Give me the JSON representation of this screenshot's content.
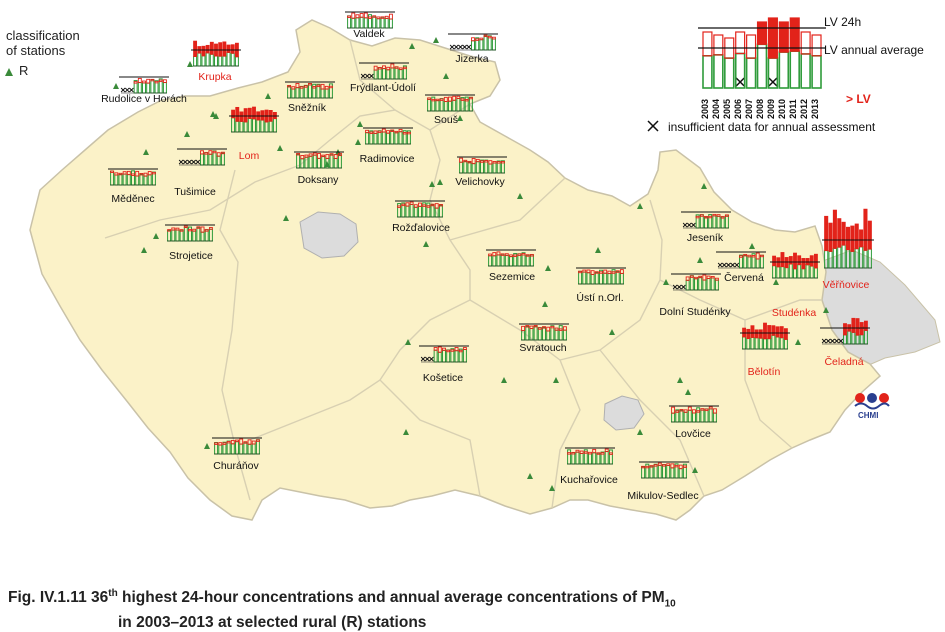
{
  "legend": {
    "title_line1": "classification",
    "title_line2": "of stations",
    "rural_marker": "R",
    "lv_24h": "LV 24h",
    "lv_annual": "LV  annual average",
    "gt_lv": "> LV",
    "insufficient": "insufficient data for annual assessment",
    "years": [
      "2003",
      "2004",
      "2005",
      "2006",
      "2007",
      "2008",
      "2009",
      "2010",
      "2011",
      "2012",
      "2013"
    ]
  },
  "colors": {
    "land": "#fbf2c8",
    "neighbor": "#dcdcdc",
    "border": "#c9c2a8",
    "bar_green": "#2e9b3a",
    "bar_red": "#e2231a",
    "marker": "#3a8a3a",
    "exceed_label": "#e2231a"
  },
  "stations": [
    {
      "name": "Rudolice v Horách",
      "exceed": false
    },
    {
      "name": "Krupka",
      "exceed": true
    },
    {
      "name": "Valdek",
      "exceed": false
    },
    {
      "name": "Jizerka",
      "exceed": false
    },
    {
      "name": "Sněžník",
      "exceed": false
    },
    {
      "name": "Frýdlant-Údolí",
      "exceed": false
    },
    {
      "name": "Souš",
      "exceed": false
    },
    {
      "name": "Lom",
      "exceed": true
    },
    {
      "name": "Radimovice",
      "exceed": false
    },
    {
      "name": "Měděnec",
      "exceed": false
    },
    {
      "name": "Tušimice",
      "exceed": false
    },
    {
      "name": "Doksany",
      "exceed": false
    },
    {
      "name": "Velichovky",
      "exceed": false
    },
    {
      "name": "Rožďalovice",
      "exceed": false
    },
    {
      "name": "Strojetice",
      "exceed": false
    },
    {
      "name": "Jeseník",
      "exceed": false
    },
    {
      "name": "Sezemice",
      "exceed": false
    },
    {
      "name": "Červená",
      "exceed": false
    },
    {
      "name": "Věřňovice",
      "exceed": true
    },
    {
      "name": "Ústí n.Orl.",
      "exceed": false
    },
    {
      "name": "Dolní Studénky",
      "exceed": false
    },
    {
      "name": "Studénka",
      "exceed": true
    },
    {
      "name": "Svratouch",
      "exceed": false
    },
    {
      "name": "Bělotín",
      "exceed": true
    },
    {
      "name": "Čeladná",
      "exceed": true
    },
    {
      "name": "Košetice",
      "exceed": false
    },
    {
      "name": "Lovčice",
      "exceed": false
    },
    {
      "name": "Churáňov",
      "exceed": false
    },
    {
      "name": "Kuchařovice",
      "exceed": false
    },
    {
      "name": "Mikulov-Sedlec",
      "exceed": false
    }
  ],
  "chmi_logo": "CHMI",
  "caption": {
    "prefix": "Fig. IV.1.11  36",
    "sup": "th",
    "line1_rest": " highest 24-hour concentrations and annual average concentrations of PM",
    "sub": "10",
    "line2": "in 2003–2013 at selected rural (R) stations"
  }
}
